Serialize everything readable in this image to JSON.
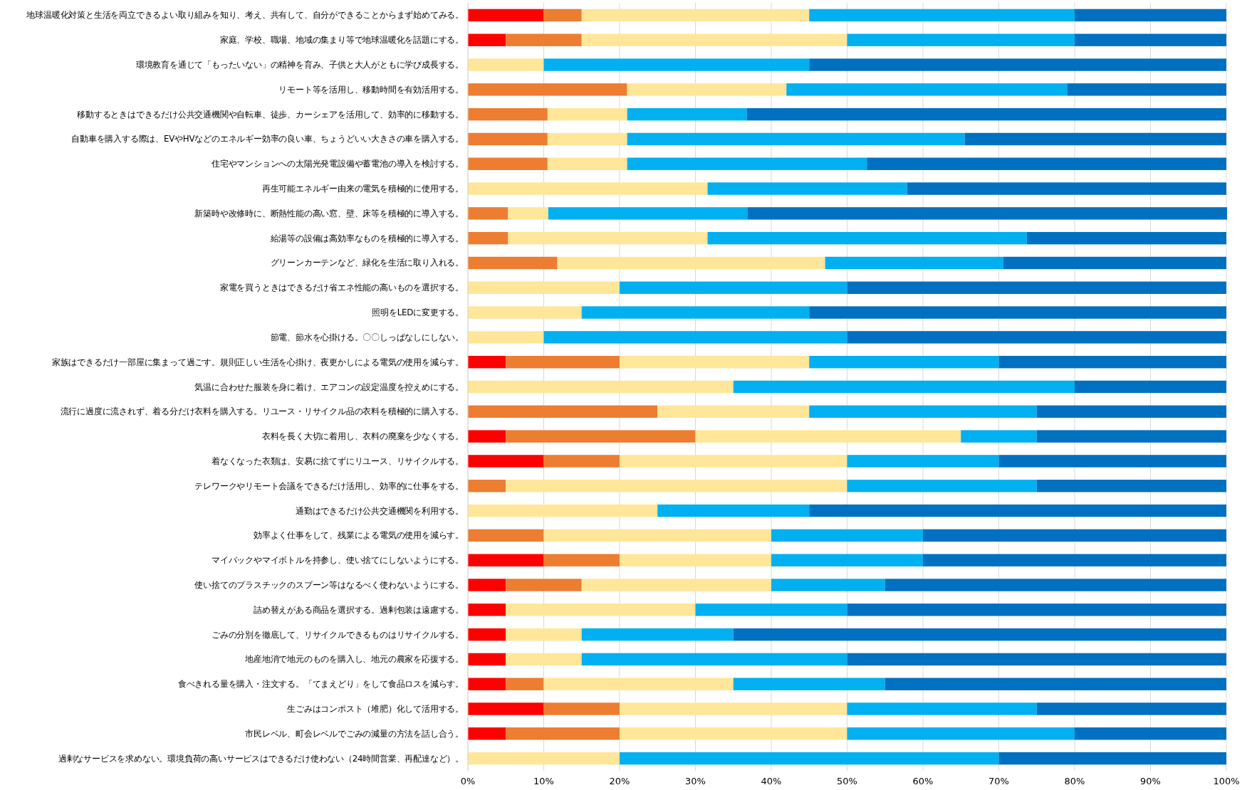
{
  "chart_data": {
    "type": "bar",
    "orientation": "horizontal",
    "stacked": true,
    "grid": "x",
    "categories": [
      "地球温暖化対策と生活を両立できるよい取り組みを知り、考え、共有して、自分ができることからまず始めてみる。",
      "家庭、学校、職場、地域の集まり等で地球温暖化を話題にする。",
      "環境教育を通じて「もったいない」の精神を育み、子供と大人がともに学び成長する。",
      "リモート等を活用し、移動時間を有効活用する。",
      "移動するときはできるだけ公共交通機関や自転車、徒歩、カーシェアを活用して、効率的に移動する。",
      "自動車を購入する際は、EVやHVなどのエネルギー効率の良い車、ちょうどいい大きさの車を購入する。",
      "住宅やマンションへの太陽光発電設備や蓄電池の導入を検討する。",
      "再生可能エネルギー由来の電気を積極的に使用する。",
      "新築時や改修時に、断熱性能の高い窓、壁、床等を積極的に導入する。",
      "給湯等の設備は高効率なものを積極的に導入する。",
      "グリーンカーテンなど、緑化を生活に取り入れる。",
      "家電を買うときはできるだけ省エネ性能の高いものを選択する。",
      "照明をLEDに変更する。",
      "節電、節水を心掛ける。〇〇しっぱなしにしない。",
      "家族はできるだけ一部屋に集まって過ごす。規則正しい生活を心掛け、夜更かしによる電気の使用を減らす。",
      "気温に合わせた服装を身に着け、エアコンの設定温度を控えめにする。",
      "流行に過度に流されず、着る分だけ衣料を購入する。リユース・リサイクル品の衣料を積極的に購入する。",
      "衣料を長く大切に着用し、衣料の廃棄を少なくする。",
      "着なくなった衣類は、安易に捨てずにリユース、リサイクルする。",
      "テレワークやリモート会議をできるだけ活用し、効率的に仕事をする。",
      "通勤はできるだけ公共交通機関を利用する。",
      "効率よく仕事をして、残業による電気の使用を減らす。",
      "マイバックやマイボトルを持参し、使い捨てにしないようにする。",
      "使い捨てのプラスチックのスプーン等はなるべく使わないようにする。",
      "詰め替えがある商品を選択する。過剰包装は遠慮する。",
      "ごみの分別を徹底して、リサイクルできるものはリサイクルする。",
      "地産地消で地元のものを購入し、地元の農家を応援する。",
      "食べきれる量を購入・注文する。「てまえどり」をして食品ロスを減らす。",
      "生ごみはコンポスト（堆肥）化して活用する。",
      "市民レベル、町会レベルでごみの減量の方法を話し合う。",
      "過剰なサービスを求めない。環境負荷の高いサービスはできるだけ使わない（24時間営業、再配達など）。"
    ],
    "series": [
      {
        "color": "#ff0000",
        "values": [
          10,
          5,
          0,
          0,
          0,
          0,
          0,
          0,
          0,
          0,
          0,
          0,
          0,
          0,
          5,
          0,
          0,
          5,
          10,
          0,
          0,
          0,
          10,
          5,
          5,
          5,
          5,
          5,
          10,
          5,
          0
        ]
      },
      {
        "color": "#ed7d31",
        "values": [
          5,
          10,
          0,
          21,
          10.5,
          10.5,
          10.5,
          0,
          5.3,
          5.3,
          11.8,
          0,
          0,
          0,
          15,
          0,
          25,
          25,
          10,
          5,
          0,
          10,
          10,
          10,
          0,
          0,
          0,
          5,
          10,
          15,
          0
        ]
      },
      {
        "color": "#ffe699",
        "values": [
          30,
          35,
          10,
          21,
          10.5,
          10.5,
          10.5,
          31.6,
          5.3,
          26.3,
          35.3,
          20,
          15,
          10,
          25,
          35,
          20,
          35,
          30,
          45,
          25,
          30,
          20,
          25,
          25,
          10,
          10,
          25,
          30,
          30,
          20
        ]
      },
      {
        "color": "#00b0f0",
        "values": [
          35,
          30,
          35,
          37,
          15.8,
          44.5,
          31.6,
          26.3,
          26.3,
          42.1,
          23.5,
          30,
          30,
          40,
          25,
          45,
          30,
          10,
          20,
          25,
          20,
          20,
          20,
          15,
          20,
          20,
          35,
          20,
          25,
          30,
          50
        ]
      },
      {
        "color": "#0070c0",
        "values": [
          20,
          20,
          55,
          21,
          63.2,
          34.5,
          47.4,
          42.1,
          63.2,
          26.3,
          29.4,
          50,
          55,
          50,
          30,
          20,
          25,
          25,
          30,
          25,
          55,
          40,
          40,
          45,
          50,
          65,
          50,
          45,
          25,
          20,
          30
        ]
      }
    ],
    "xlim": [
      0,
      100
    ],
    "xticks": [
      {
        "value": 0,
        "label": "0%"
      },
      {
        "value": 10,
        "label": "10%"
      },
      {
        "value": 20,
        "label": "20%"
      },
      {
        "value": 30,
        "label": "30%"
      },
      {
        "value": 40,
        "label": "40%"
      },
      {
        "value": 50,
        "label": "50%"
      },
      {
        "value": 60,
        "label": "60%"
      },
      {
        "value": 70,
        "label": "70%"
      },
      {
        "value": 80,
        "label": "80%"
      },
      {
        "value": 90,
        "label": "90%"
      },
      {
        "value": 100,
        "label": "100%"
      }
    ]
  }
}
